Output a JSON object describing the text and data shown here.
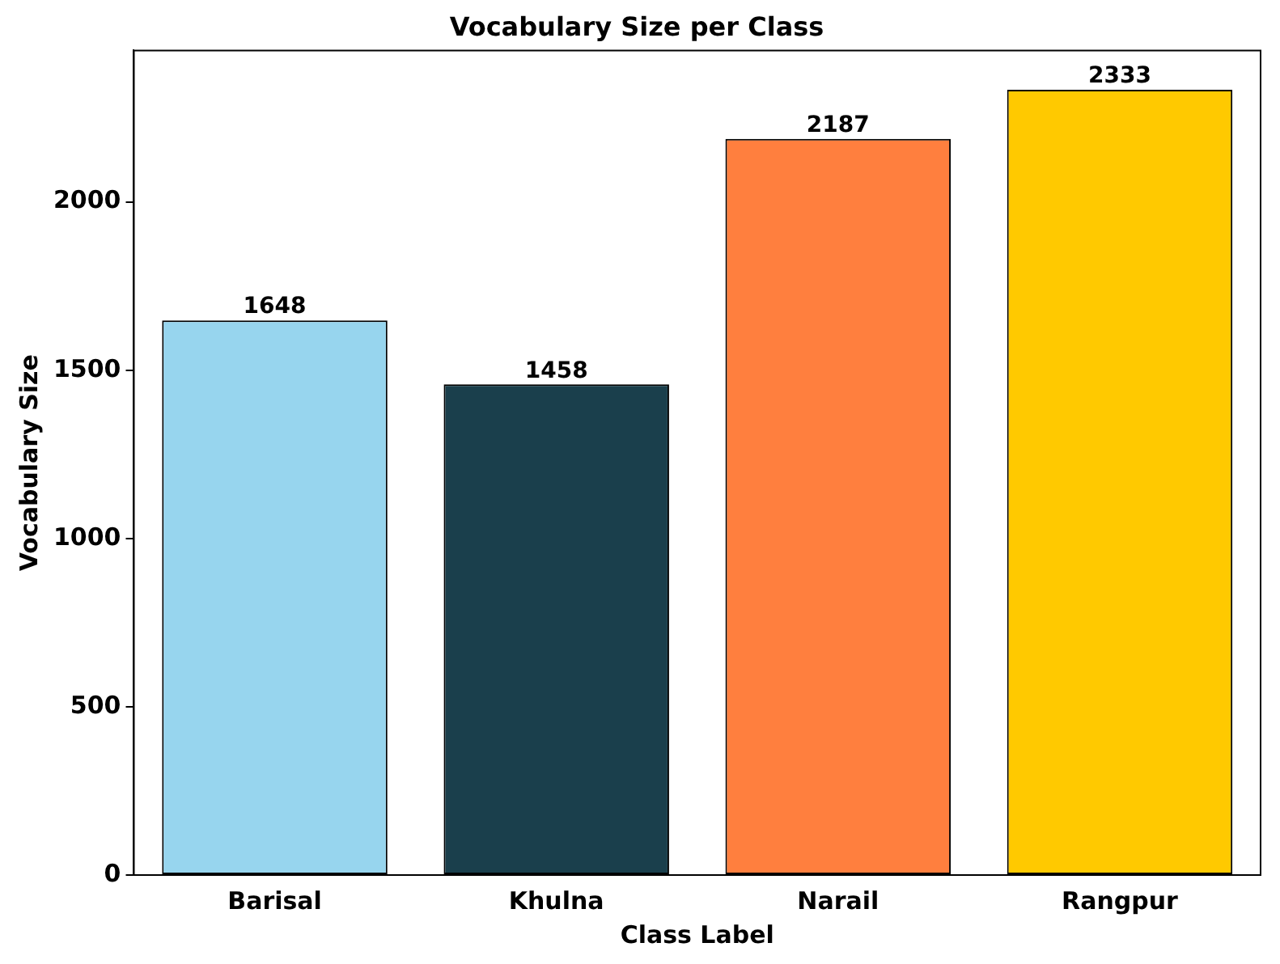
{
  "chart_data": {
    "type": "bar",
    "title": "Vocabulary Size per Class",
    "xlabel": "Class Label",
    "ylabel": "Vocabulary Size",
    "categories": [
      "Barisal",
      "Khulna",
      "Narail",
      "Rangpur"
    ],
    "values": [
      1648,
      1458,
      2187,
      2333
    ],
    "colors": [
      "#97d5ee",
      "#1a3f4c",
      "#ff7f3e",
      "#ffc900"
    ],
    "ylim": [
      0,
      2450
    ],
    "yticks": [
      0,
      500,
      1000,
      1500,
      2000
    ],
    "grid": false,
    "data_labels": true
  }
}
